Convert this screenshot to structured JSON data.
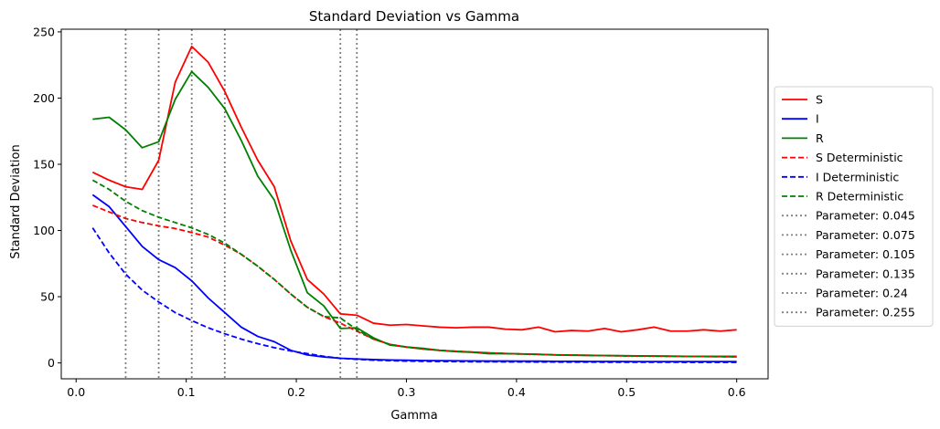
{
  "chart_data": {
    "type": "line",
    "title": "Standard Deviation vs Gamma",
    "xlabel": "Gamma",
    "ylabel": "Standard Deviation",
    "xlim": [
      -0.0135,
      0.6285
    ],
    "ylim": [
      -12,
      252
    ],
    "xticks": [
      0.0,
      0.1,
      0.2,
      0.3,
      0.4,
      0.5,
      0.6
    ],
    "xtick_labels": [
      "0.0",
      "0.1",
      "0.2",
      "0.3",
      "0.4",
      "0.5",
      "0.6"
    ],
    "yticks": [
      0,
      50,
      100,
      150,
      200,
      250
    ],
    "ytick_labels": [
      "0",
      "50",
      "100",
      "150",
      "200",
      "250"
    ],
    "grid": false,
    "legend_position": "outside-right",
    "x": [
      0.015,
      0.03,
      0.045,
      0.06,
      0.075,
      0.09,
      0.105,
      0.12,
      0.135,
      0.15,
      0.165,
      0.18,
      0.195,
      0.21,
      0.225,
      0.24,
      0.255,
      0.27,
      0.285,
      0.3,
      0.315,
      0.33,
      0.345,
      0.36,
      0.375,
      0.39,
      0.405,
      0.42,
      0.435,
      0.45,
      0.465,
      0.48,
      0.495,
      0.51,
      0.525,
      0.54,
      0.555,
      0.57,
      0.585,
      0.6
    ],
    "series": [
      {
        "name": "S",
        "color": "#ff0000",
        "dash": "solid",
        "values": [
          144,
          138,
          133,
          131,
          153,
          212,
          239,
          227,
          205,
          178,
          153,
          133,
          92,
          63,
          52,
          37,
          36,
          30,
          28.5,
          29,
          28,
          27,
          26.5,
          27,
          27,
          25.5,
          25,
          27,
          23.5,
          24.5,
          24,
          26,
          23.5,
          25,
          27,
          24,
          24,
          25,
          24,
          25
        ]
      },
      {
        "name": "I",
        "color": "#0000ff",
        "dash": "solid",
        "values": [
          127,
          118,
          103,
          88,
          78,
          72,
          62,
          49,
          38,
          27,
          20,
          16,
          9.5,
          6,
          4.5,
          3.5,
          3,
          2.5,
          2.2,
          2,
          1.8,
          1.7,
          1.6,
          1.5,
          1.4,
          1.4,
          1.3,
          1.3,
          1.2,
          1.2,
          1.1,
          1.1,
          1.1,
          1,
          1,
          1,
          1,
          1,
          1,
          1
        ]
      },
      {
        "name": "R",
        "color": "#008000",
        "dash": "solid",
        "values": [
          184,
          185.5,
          176,
          162.5,
          167,
          199,
          220,
          208,
          192,
          168,
          141,
          123,
          85,
          53,
          43,
          26,
          26.5,
          19,
          13.5,
          12,
          11,
          9.5,
          8.5,
          8,
          7,
          7,
          6.8,
          6.5,
          6,
          5.8,
          5.7,
          5.6,
          5.5,
          5.3,
          5.2,
          5.1,
          5,
          5,
          5,
          5
        ]
      },
      {
        "name": "S Deterministic",
        "color": "#ff0000",
        "dash": "dashed",
        "values": [
          119,
          114,
          109,
          106,
          103.5,
          101.5,
          98.5,
          95,
          89,
          82,
          73,
          63,
          52,
          42,
          35,
          30,
          24,
          18,
          14,
          12,
          10.5,
          9.5,
          8.8,
          8.2,
          7.6,
          7.1,
          6.7,
          6.4,
          6.1,
          5.9,
          5.7,
          5.5,
          5.3,
          5.2,
          5.1,
          5,
          4.9,
          4.8,
          4.7,
          4.6
        ]
      },
      {
        "name": "I Deterministic",
        "color": "#0000ff",
        "dash": "dashed",
        "values": [
          102,
          83,
          67,
          55,
          46,
          38,
          32,
          26.5,
          22,
          18,
          14.5,
          11.5,
          9,
          7,
          5,
          3.5,
          2.7,
          2.1,
          1.7,
          1.4,
          1.2,
          1.1,
          1,
          0.9,
          0.85,
          0.8,
          0.75,
          0.7,
          0.65,
          0.6,
          0.6,
          0.55,
          0.55,
          0.5,
          0.5,
          0.5,
          0.45,
          0.45,
          0.45,
          0.4
        ]
      },
      {
        "name": "R Deterministic",
        "color": "#008000",
        "dash": "dashed",
        "values": [
          138,
          131,
          122,
          115,
          110,
          106,
          102,
          97,
          90.5,
          82,
          73,
          63,
          52,
          42,
          35,
          34,
          25,
          18,
          14,
          12,
          10.5,
          9.5,
          8.8,
          8.2,
          7.6,
          7.1,
          6.7,
          6.4,
          6.1,
          5.9,
          5.7,
          5.5,
          5.3,
          5.2,
          5.1,
          5,
          4.9,
          4.8,
          4.7,
          4.6
        ]
      }
    ],
    "vlines": [
      {
        "name": "Parameter: 0.045",
        "x": 0.045,
        "color": "#808080"
      },
      {
        "name": "Parameter: 0.075",
        "x": 0.075,
        "color": "#808080"
      },
      {
        "name": "Parameter: 0.105",
        "x": 0.105,
        "color": "#808080"
      },
      {
        "name": "Parameter: 0.135",
        "x": 0.135,
        "color": "#808080"
      },
      {
        "name": "Parameter: 0.24",
        "x": 0.24,
        "color": "#808080"
      },
      {
        "name": "Parameter: 0.255",
        "x": 0.255,
        "color": "#808080"
      }
    ]
  }
}
